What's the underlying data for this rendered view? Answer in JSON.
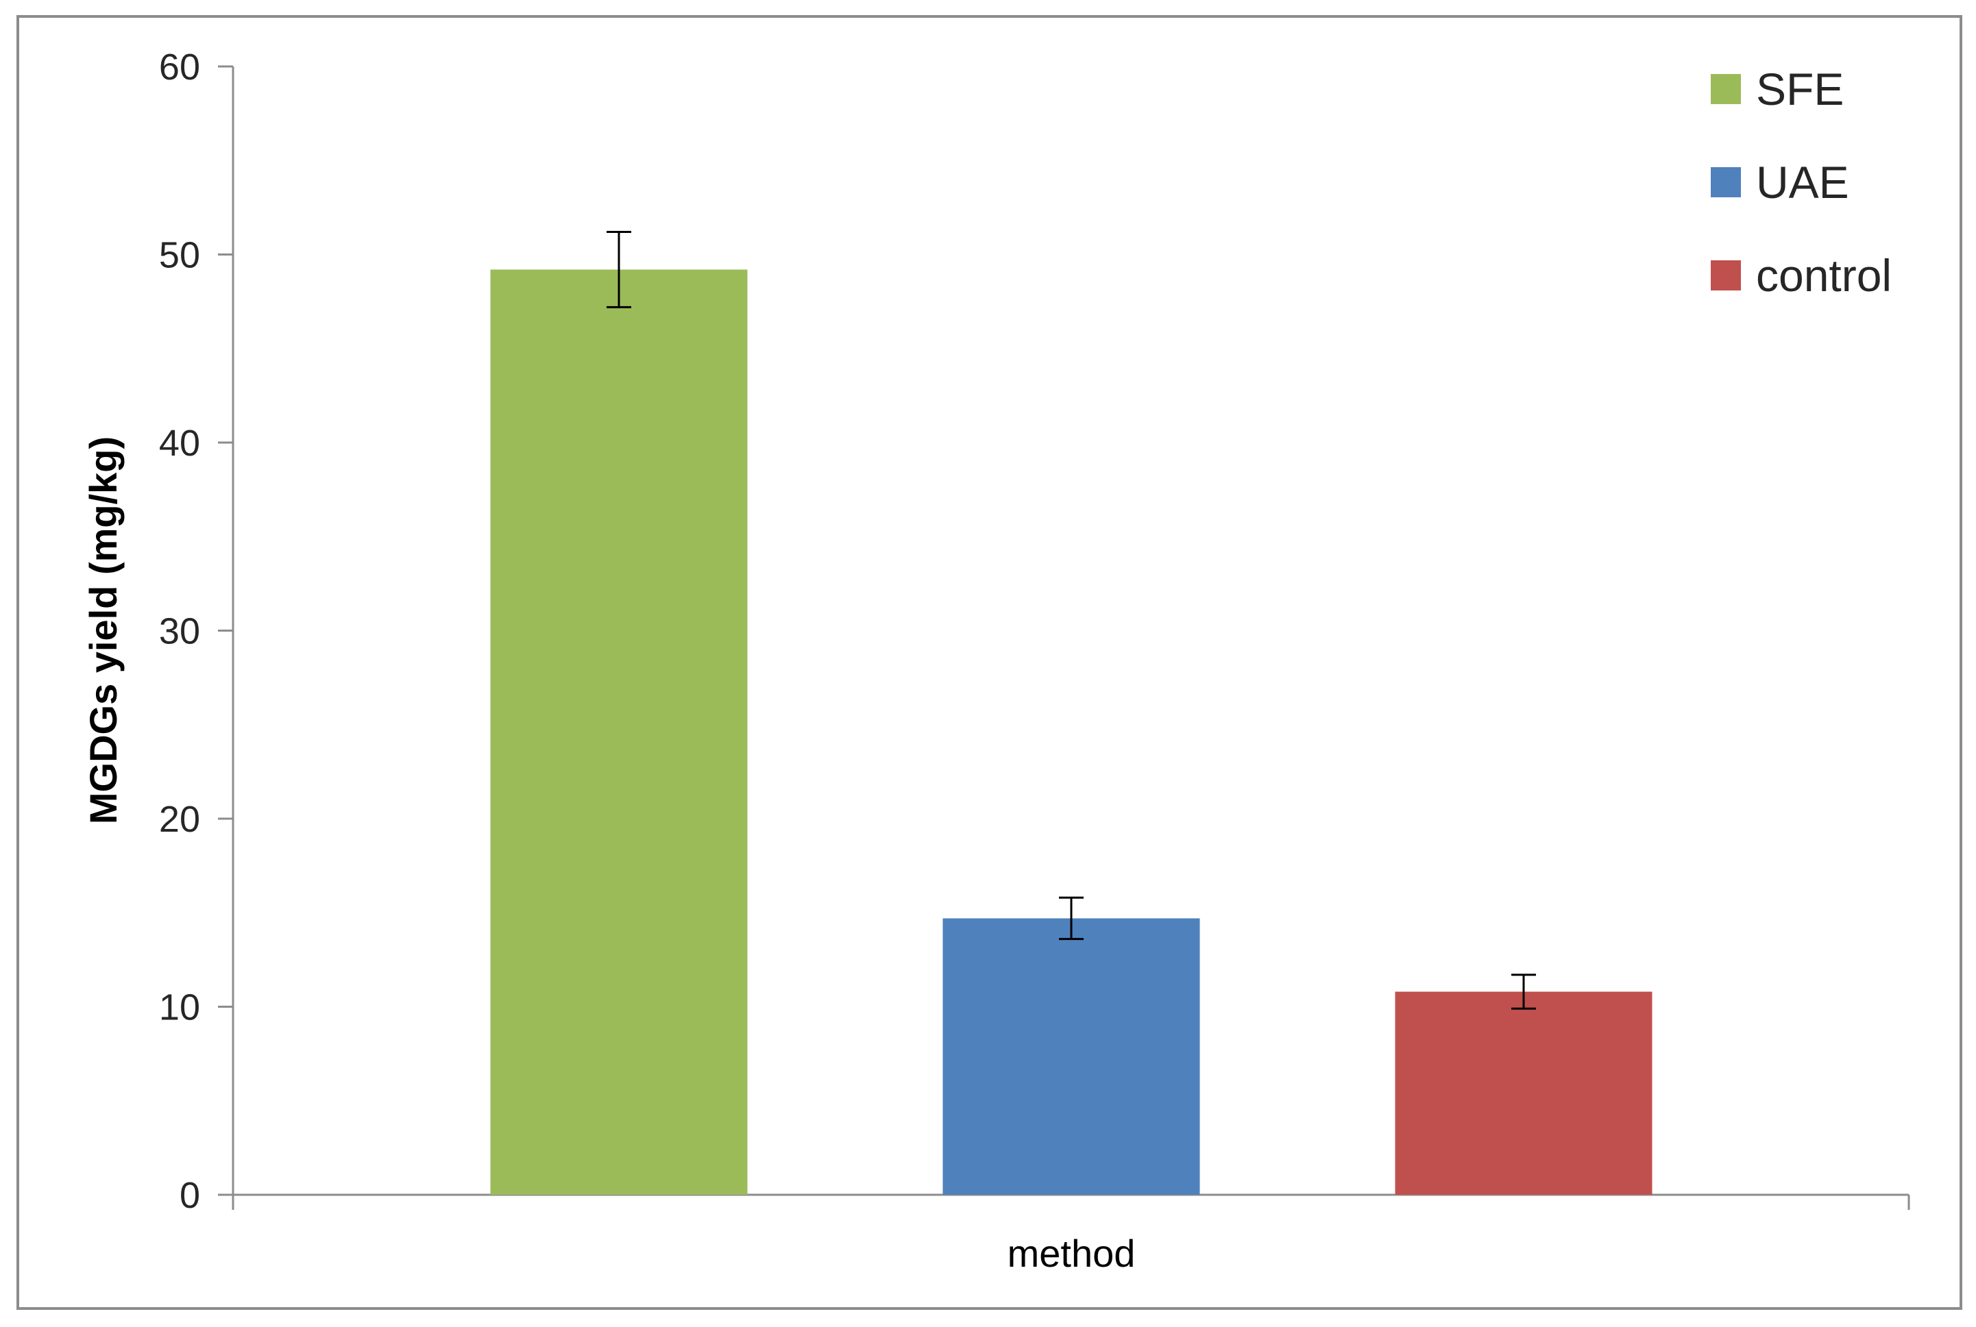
{
  "chart_data": {
    "type": "bar",
    "title": "",
    "xlabel": "method",
    "ylabel": "MGDGs yield (mg/kg)",
    "categories": [
      "method"
    ],
    "ylim": [
      0,
      60
    ],
    "yticks": [
      0,
      10,
      20,
      30,
      40,
      50,
      60
    ],
    "grid": false,
    "legend_position": "top-right",
    "series": [
      {
        "name": "SFE",
        "values": [
          49.2
        ],
        "error": [
          2.0
        ],
        "color": "#9bbb59"
      },
      {
        "name": "UAE",
        "values": [
          14.7
        ],
        "error": [
          1.1
        ],
        "color": "#4f81bd"
      },
      {
        "name": "control",
        "values": [
          10.8
        ],
        "error": [
          0.9
        ],
        "color": "#c0504d"
      }
    ]
  }
}
